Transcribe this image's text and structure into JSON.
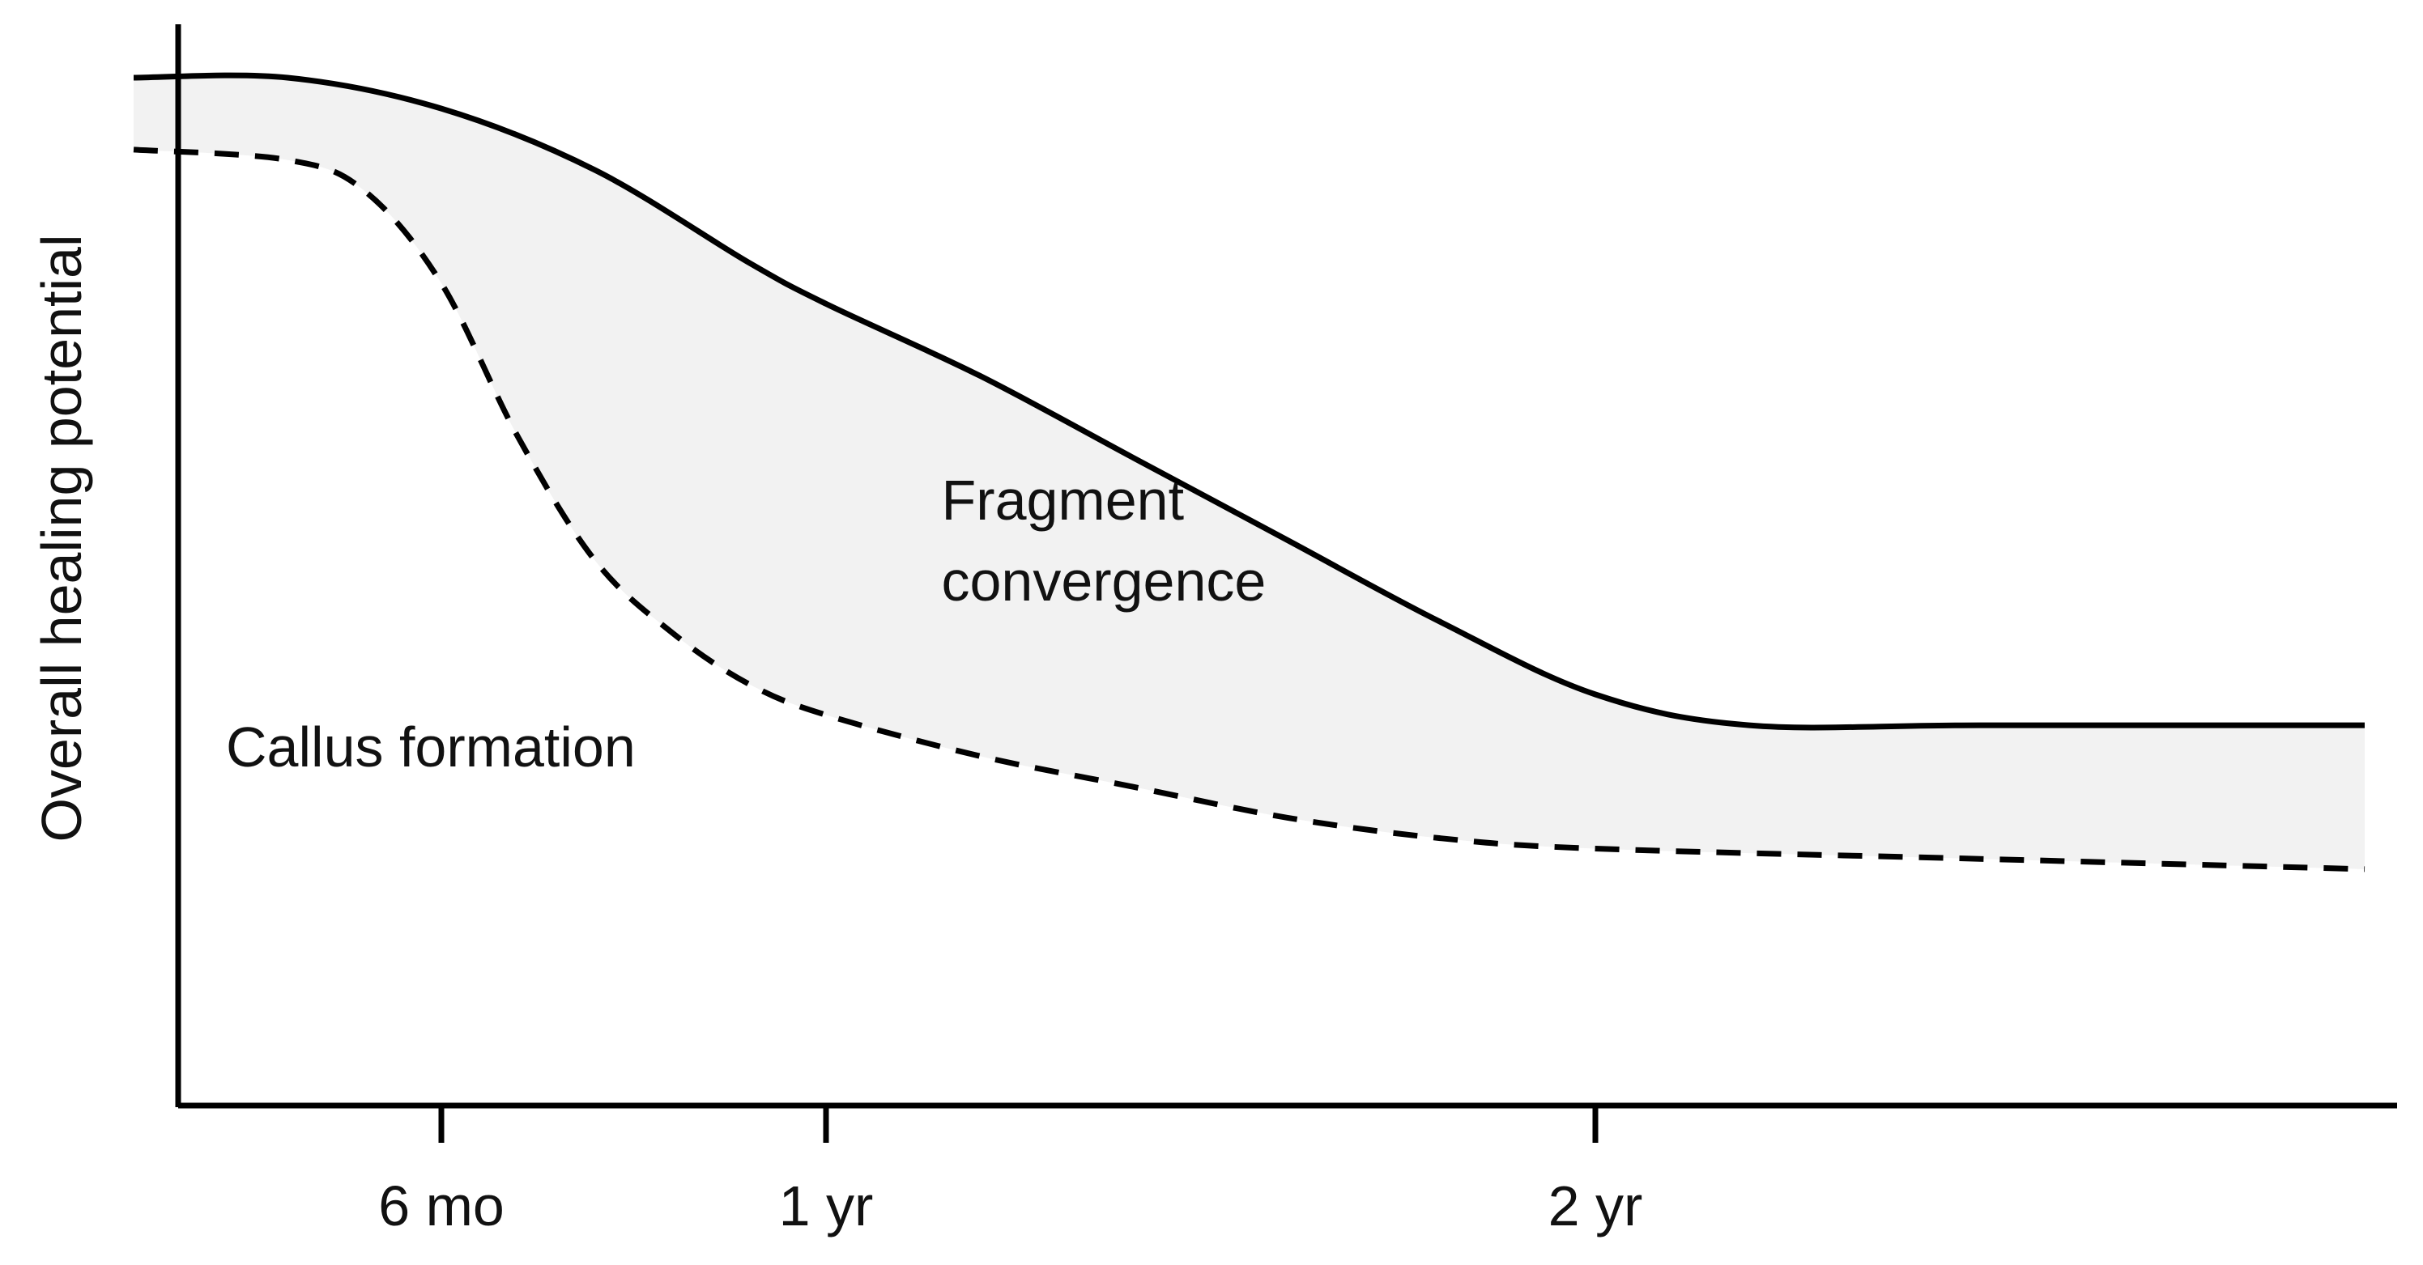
{
  "chart_data": {
    "type": "area",
    "title": "",
    "xlabel": "",
    "ylabel": "Overall healing potential",
    "xlim": [
      0,
      3.1
    ],
    "ylim": [
      0,
      1
    ],
    "grid": false,
    "legend": "none",
    "x_ticks": [
      {
        "value": 0.5,
        "label": "6 mo"
      },
      {
        "value": 1.0,
        "label": "1 yr"
      },
      {
        "value": 2.0,
        "label": "2 yr"
      }
    ],
    "series": [
      {
        "style": "solid",
        "x": [
          0.1,
          0.3,
          0.5,
          0.7,
          0.9,
          1.0,
          1.2,
          1.4,
          1.6,
          1.8,
          2.0,
          2.2,
          2.5,
          3.0
        ],
        "values": [
          1.0,
          1.0,
          0.97,
          0.91,
          0.82,
          0.78,
          0.71,
          0.63,
          0.55,
          0.47,
          0.4,
          0.37,
          0.37,
          0.37
        ]
      },
      {
        "style": "dashed",
        "x": [
          0.1,
          0.3,
          0.4,
          0.5,
          0.6,
          0.7,
          0.8,
          0.9,
          1.0,
          1.2,
          1.4,
          1.6,
          1.8,
          2.0,
          2.5,
          3.0
        ],
        "values": [
          0.93,
          0.92,
          0.89,
          0.8,
          0.65,
          0.53,
          0.46,
          0.41,
          0.38,
          0.34,
          0.31,
          0.28,
          0.26,
          0.25,
          0.24,
          0.23
        ]
      }
    ],
    "band_fill": "#f2f2f2",
    "annotations": [
      {
        "text_lines": [
          "Fragment",
          "convergence"
        ],
        "x": 1.15,
        "y": 0.57
      },
      {
        "text_lines": [
          "Callus formation"
        ],
        "x": 0.22,
        "y": 0.33
      }
    ]
  }
}
